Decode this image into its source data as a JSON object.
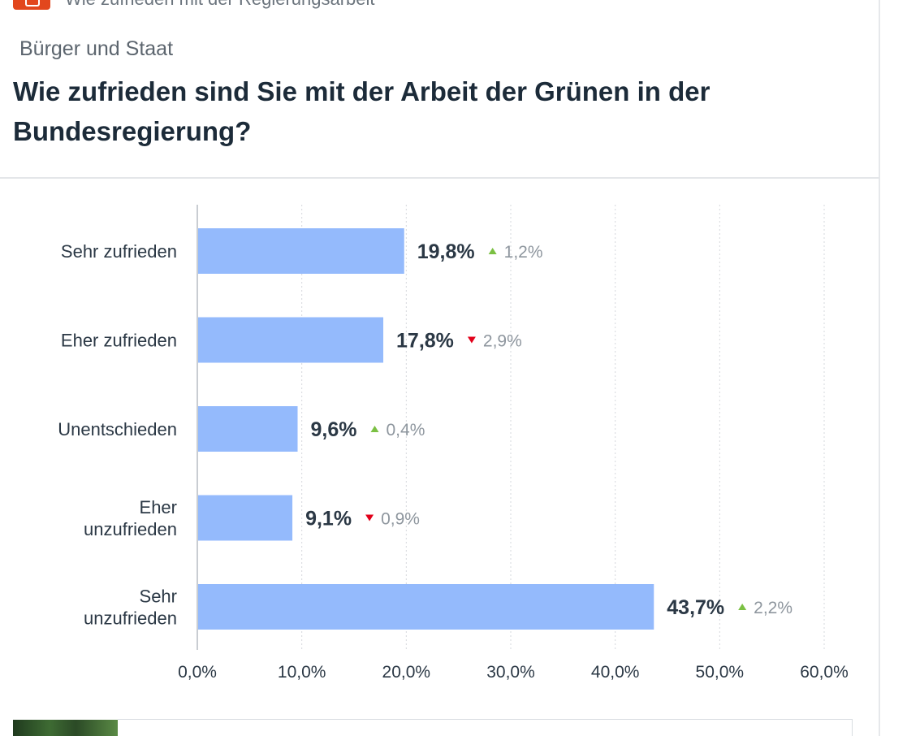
{
  "header": {
    "cut_text": "Wie zufrieden mit der Regierungsarbeit",
    "category": "Bürger und Staat",
    "question": "Wie zufrieden sind Sie mit der Arbeit der Grünen in der Bundesregierung?"
  },
  "colors": {
    "bar": "#94bafc",
    "up": "#7bc043",
    "down": "#e2001a",
    "logo": "#e2471d"
  },
  "chart_data": {
    "type": "bar",
    "orientation": "horizontal",
    "categories": [
      [
        "Sehr zufrieden"
      ],
      [
        "Eher zufrieden"
      ],
      [
        "Unentschieden"
      ],
      [
        "Eher",
        "unzufrieden"
      ],
      [
        "Sehr",
        "unzufrieden"
      ]
    ],
    "values": [
      19.8,
      17.8,
      9.6,
      9.1,
      43.7
    ],
    "value_labels": [
      "19,8%",
      "17,8%",
      "9,6%",
      "9,1%",
      "43,7%"
    ],
    "changes": [
      {
        "direction": "up",
        "label": "1,2%"
      },
      {
        "direction": "down",
        "label": "2,9%"
      },
      {
        "direction": "up",
        "label": "0,4%"
      },
      {
        "direction": "down",
        "label": "0,9%"
      },
      {
        "direction": "up",
        "label": "2,2%"
      }
    ],
    "xlim": [
      0,
      60
    ],
    "xticks": [
      0,
      10,
      20,
      30,
      40,
      50,
      60
    ],
    "xtick_labels": [
      "0,0%",
      "10,0%",
      "20,0%",
      "30,0%",
      "40,0%",
      "50,0%",
      "60,0%"
    ],
    "grid": true
  }
}
